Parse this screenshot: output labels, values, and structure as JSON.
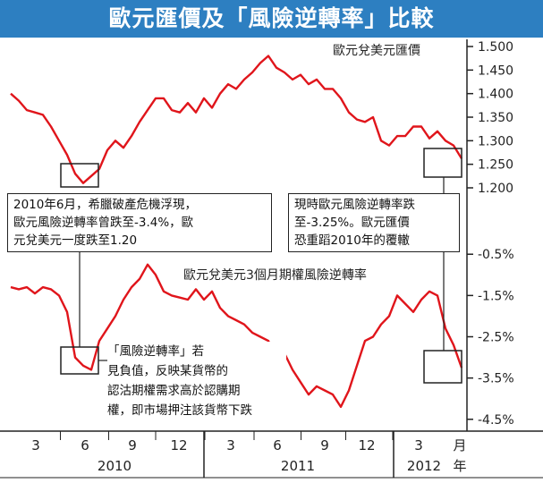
{
  "title": "歐元匯價及「風險逆轉率」比較",
  "chart_data": [
    {
      "type": "line",
      "name": "eur_usd_rate",
      "series_label": "歐元兌美元匯價",
      "ylim": [
        1.2,
        1.5
      ],
      "ytick_labels": [
        "1.500",
        "1.450",
        "1.400",
        "1.350",
        "1.300",
        "1.250",
        "1.200"
      ],
      "yticks": [
        1.5,
        1.45,
        1.4,
        1.35,
        1.3,
        1.25,
        1.2
      ],
      "x": [
        0,
        0.5,
        1,
        1.5,
        2,
        2.5,
        3,
        3.5,
        4,
        4.5,
        5,
        5.5,
        6,
        6.5,
        7,
        7.5,
        8,
        8.5,
        9,
        9.5,
        10,
        10.5,
        11,
        11.5,
        12,
        12.5,
        13,
        13.5,
        14,
        14.5,
        15,
        15.5,
        16,
        16.5,
        17,
        17.5,
        18,
        18.5,
        19,
        19.5,
        20,
        20.5,
        21,
        21.5,
        22,
        22.5,
        23,
        23.5,
        24,
        24.5,
        25,
        25.5,
        26,
        26.5,
        27,
        27.5,
        28
      ],
      "values": [
        1.4,
        1.385,
        1.365,
        1.36,
        1.355,
        1.33,
        1.3,
        1.27,
        1.23,
        1.21,
        1.225,
        1.24,
        1.28,
        1.3,
        1.285,
        1.31,
        1.34,
        1.365,
        1.39,
        1.39,
        1.365,
        1.36,
        1.38,
        1.36,
        1.39,
        1.37,
        1.4,
        1.42,
        1.41,
        1.43,
        1.445,
        1.465,
        1.48,
        1.455,
        1.445,
        1.43,
        1.44,
        1.42,
        1.43,
        1.41,
        1.41,
        1.39,
        1.36,
        1.345,
        1.34,
        1.35,
        1.3,
        1.29,
        1.31,
        1.31,
        1.33,
        1.33,
        1.305,
        1.32,
        1.3,
        1.29,
        1.262
      ]
    },
    {
      "type": "line",
      "name": "risk_reversal",
      "series_label": "歐元兌美元3個月期權風險逆轉率",
      "ylim": [
        -4.7,
        -0.3
      ],
      "ytick_labels": [
        "-0.5%",
        "-1.5%",
        "-2.5%",
        "-3.5%",
        "-4.5%"
      ],
      "yticks": [
        -0.5,
        -1.5,
        -2.5,
        -3.5,
        -4.5
      ],
      "x": [
        0,
        0.5,
        1,
        1.5,
        2,
        2.5,
        3,
        3.5,
        4,
        4.5,
        5,
        5.5,
        6,
        6.5,
        7,
        7.5,
        8,
        8.5,
        9,
        9.5,
        10,
        10.5,
        11,
        11.5,
        12,
        12.5,
        13,
        13.5,
        14,
        14.5,
        15,
        15.5,
        16,
        16.5,
        17,
        17.5,
        18,
        18.5,
        19,
        19.5,
        20,
        20.5,
        21,
        21.5,
        22,
        22.5,
        23,
        23.5,
        24,
        24.5,
        25,
        25.5,
        26,
        26.5,
        27,
        27.5,
        28
      ],
      "values": [
        -1.3,
        -1.35,
        -1.3,
        -1.45,
        -1.3,
        -1.35,
        -1.5,
        -1.9,
        -3.0,
        -3.2,
        -3.3,
        -2.6,
        -2.3,
        -2.0,
        -1.6,
        -1.3,
        -1.1,
        -0.75,
        -1.0,
        -1.4,
        -1.5,
        -1.55,
        -1.6,
        -1.35,
        -1.6,
        -1.4,
        -1.8,
        -2.0,
        -2.1,
        -2.2,
        -2.4,
        -2.5,
        -2.6,
        -3.0,
        -2.9,
        -3.3,
        -3.6,
        -3.9,
        -3.7,
        -3.8,
        -3.9,
        -4.2,
        -3.8,
        -3.2,
        -2.6,
        -2.5,
        -2.2,
        -2.0,
        -1.5,
        -1.7,
        -1.9,
        -1.6,
        -1.4,
        -1.5,
        -2.3,
        -2.7,
        -3.25
      ]
    }
  ],
  "x_axis": {
    "month_labels": [
      "3",
      "6",
      "9",
      "12",
      "3",
      "6",
      "9",
      "12",
      "3"
    ],
    "year_labels": [
      "2010",
      "2011",
      "2012"
    ],
    "unit_month": "月",
    "unit_year": "年"
  },
  "annotations": {
    "greek_crisis_lines": [
      "2010年6月，希臘破產危機浮現，",
      "歐元風險逆轉率曾跌至-3.4%，歐",
      "元兌美元一度跌至1.20"
    ],
    "current_lines": [
      "現時歐元風險逆轉率跌",
      "至-3.25%。歐元匯價",
      "恐重蹈2010年的覆轍"
    ],
    "definition_lines": [
      "「風險逆轉率」若",
      "見負值，反映某貨幣的",
      "認沽期權需求高於認購期",
      "權，即市場押注該貨幣下跌"
    ]
  },
  "colors": {
    "title_bg": "#2d7fc1",
    "line": "#e0151b",
    "axis": "#222222"
  }
}
